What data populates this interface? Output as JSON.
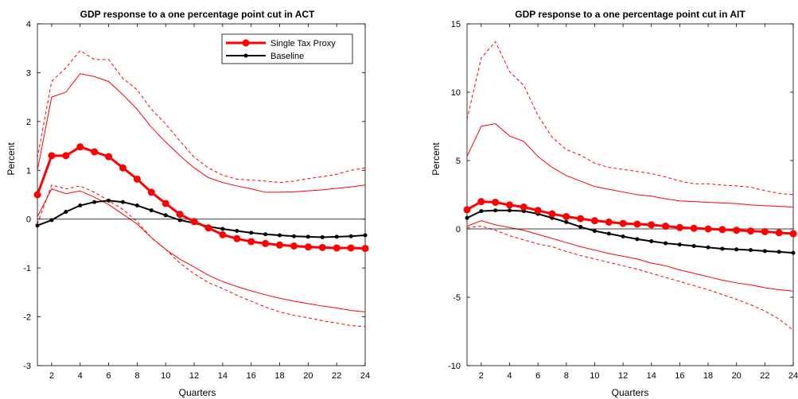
{
  "chart_data": [
    {
      "type": "line",
      "title": "GDP response to a one percentage point cut in ACT",
      "xlabel": "Quarters",
      "ylabel": "Percent",
      "xlim": [
        1,
        24
      ],
      "ylim": [
        -3,
        4
      ],
      "xticks": [
        2,
        4,
        6,
        8,
        10,
        12,
        14,
        16,
        18,
        20,
        22,
        24
      ],
      "yticks": [
        -3,
        -2,
        -1,
        0,
        1,
        2,
        3,
        4
      ],
      "grid": false,
      "legend": {
        "placement": "top-right",
        "entries": [
          "Single Tax Proxy",
          "Baseline"
        ]
      },
      "series": [
        {
          "name": "Single Tax Proxy",
          "color": "#ff0000",
          "style": "solid-thick-markers",
          "values": [
            0.5,
            1.3,
            1.3,
            1.48,
            1.38,
            1.28,
            1.05,
            0.82,
            0.55,
            0.32,
            0.1,
            -0.05,
            -0.18,
            -0.32,
            -0.4,
            -0.46,
            -0.5,
            -0.53,
            -0.55,
            -0.57,
            -0.58,
            -0.59,
            -0.59,
            -0.6
          ]
        },
        {
          "name": "Baseline",
          "color": "#000000",
          "style": "solid-markers",
          "values": [
            -0.13,
            -0.02,
            0.15,
            0.28,
            0.35,
            0.38,
            0.35,
            0.28,
            0.18,
            0.08,
            -0.02,
            -0.08,
            -0.15,
            -0.2,
            -0.24,
            -0.28,
            -0.31,
            -0.33,
            -0.35,
            -0.36,
            -0.37,
            -0.36,
            -0.35,
            -0.33
          ]
        },
        {
          "color": "#ff0000",
          "style": "solid-thin",
          "values": [
            1.0,
            2.5,
            2.6,
            2.98,
            2.92,
            2.82,
            2.55,
            2.25,
            1.88,
            1.58,
            1.3,
            1.05,
            0.85,
            0.75,
            0.68,
            0.62,
            0.55,
            0.55,
            0.56,
            0.58,
            0.6,
            0.63,
            0.66,
            0.7
          ]
        },
        {
          "color": "#ff0000",
          "style": "solid-thin",
          "values": [
            0.05,
            0.62,
            0.52,
            0.58,
            0.45,
            0.3,
            0.1,
            -0.1,
            -0.38,
            -0.62,
            -0.82,
            -0.98,
            -1.15,
            -1.28,
            -1.38,
            -1.47,
            -1.55,
            -1.62,
            -1.68,
            -1.73,
            -1.78,
            -1.82,
            -1.87,
            -1.9
          ]
        },
        {
          "color": "#ff0000",
          "style": "dashed",
          "values": [
            1.25,
            2.82,
            3.1,
            3.45,
            3.27,
            3.27,
            2.88,
            2.65,
            2.25,
            1.95,
            1.6,
            1.27,
            1.05,
            0.9,
            0.82,
            0.8,
            0.78,
            0.75,
            0.78,
            0.83,
            0.87,
            0.92,
            1.0,
            1.05
          ]
        },
        {
          "color": "#ff0000",
          "style": "dashed",
          "values": [
            -0.1,
            0.7,
            0.62,
            0.68,
            0.55,
            0.38,
            0.2,
            -0.05,
            -0.38,
            -0.62,
            -0.9,
            -1.12,
            -1.3,
            -1.42,
            -1.56,
            -1.68,
            -1.8,
            -1.9,
            -1.97,
            -2.02,
            -2.08,
            -2.13,
            -2.18,
            -2.2
          ]
        },
        {
          "color": "#000000",
          "style": "zero-line",
          "values": [
            0,
            0
          ]
        }
      ]
    },
    {
      "type": "line",
      "title": "GDP response to a one percentage point cut in AIT",
      "xlabel": "Quarters",
      "ylabel": "Percent",
      "xlim": [
        1,
        24
      ],
      "ylim": [
        -10,
        15
      ],
      "xticks": [
        2,
        4,
        6,
        8,
        10,
        12,
        14,
        16,
        18,
        20,
        22,
        24
      ],
      "yticks": [
        -10,
        -5,
        0,
        5,
        10,
        15
      ],
      "grid": false,
      "series": [
        {
          "name": "Single Tax Proxy",
          "color": "#ff0000",
          "style": "solid-thick-markers",
          "values": [
            1.4,
            2.0,
            1.95,
            1.75,
            1.6,
            1.35,
            1.1,
            0.9,
            0.75,
            0.6,
            0.5,
            0.4,
            0.35,
            0.3,
            0.2,
            0.1,
            0.05,
            0.0,
            -0.05,
            -0.1,
            -0.15,
            -0.2,
            -0.28,
            -0.35
          ]
        },
        {
          "name": "Baseline",
          "color": "#000000",
          "style": "solid-markers",
          "values": [
            0.8,
            1.3,
            1.35,
            1.35,
            1.3,
            1.1,
            0.8,
            0.5,
            0.15,
            -0.15,
            -0.35,
            -0.55,
            -0.75,
            -0.9,
            -1.05,
            -1.15,
            -1.25,
            -1.35,
            -1.45,
            -1.5,
            -1.55,
            -1.62,
            -1.68,
            -1.75
          ]
        },
        {
          "color": "#ff0000",
          "style": "solid-thin",
          "values": [
            5.3,
            7.5,
            7.7,
            6.8,
            6.4,
            5.3,
            4.5,
            3.9,
            3.5,
            3.1,
            2.9,
            2.7,
            2.5,
            2.4,
            2.2,
            2.05,
            2.0,
            1.95,
            1.9,
            1.85,
            1.75,
            1.7,
            1.65,
            1.6
          ]
        },
        {
          "color": "#ff0000",
          "style": "solid-thin",
          "values": [
            0.2,
            0.6,
            0.3,
            0.1,
            -0.1,
            -0.4,
            -0.7,
            -1.0,
            -1.3,
            -1.55,
            -1.8,
            -2.0,
            -2.2,
            -2.5,
            -2.7,
            -3.0,
            -3.25,
            -3.5,
            -3.75,
            -3.95,
            -4.1,
            -4.3,
            -4.45,
            -4.55
          ]
        },
        {
          "color": "#ff0000",
          "style": "dashed",
          "values": [
            8.0,
            12.5,
            13.7,
            11.5,
            10.5,
            8.3,
            6.7,
            5.8,
            5.4,
            4.8,
            4.5,
            4.35,
            4.2,
            4.05,
            3.8,
            3.5,
            3.3,
            3.3,
            3.2,
            3.15,
            3.05,
            2.8,
            2.6,
            2.5
          ]
        },
        {
          "color": "#ff0000",
          "style": "dashed",
          "values": [
            0.1,
            0.2,
            -0.1,
            -0.5,
            -0.8,
            -1.1,
            -1.3,
            -1.65,
            -1.95,
            -2.2,
            -2.45,
            -2.7,
            -2.95,
            -3.25,
            -3.55,
            -3.85,
            -4.15,
            -4.45,
            -4.8,
            -5.15,
            -5.55,
            -6.0,
            -6.6,
            -7.4
          ]
        },
        {
          "color": "#000000",
          "style": "zero-line",
          "values": [
            0,
            0
          ]
        }
      ]
    }
  ]
}
